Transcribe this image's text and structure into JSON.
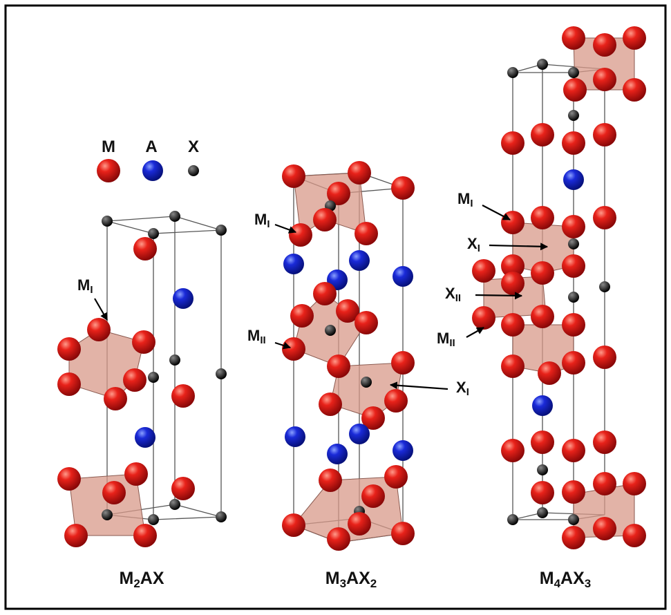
{
  "legend": [
    {
      "label": "M"
    },
    {
      "label": "A"
    },
    {
      "label": "X"
    }
  ],
  "structures": [
    {
      "caption": {
        "parts": [
          "M",
          "2",
          "AX"
        ]
      },
      "labels": [
        {
          "main": "M",
          "sub": "I"
        }
      ]
    },
    {
      "caption": {
        "parts": [
          "M",
          "3",
          "AX",
          "2"
        ]
      },
      "labels": [
        {
          "main": "M",
          "sub": "I"
        },
        {
          "main": "M",
          "sub": "II"
        },
        {
          "main": "X",
          "sub": "I"
        }
      ]
    },
    {
      "caption": {
        "parts": [
          "M",
          "4",
          "AX",
          "3"
        ]
      },
      "labels": [
        {
          "main": "M",
          "sub": "I"
        },
        {
          "main": "X",
          "sub": "I"
        },
        {
          "main": "X",
          "sub": "II"
        },
        {
          "main": "M",
          "sub": "II"
        }
      ]
    }
  ]
}
